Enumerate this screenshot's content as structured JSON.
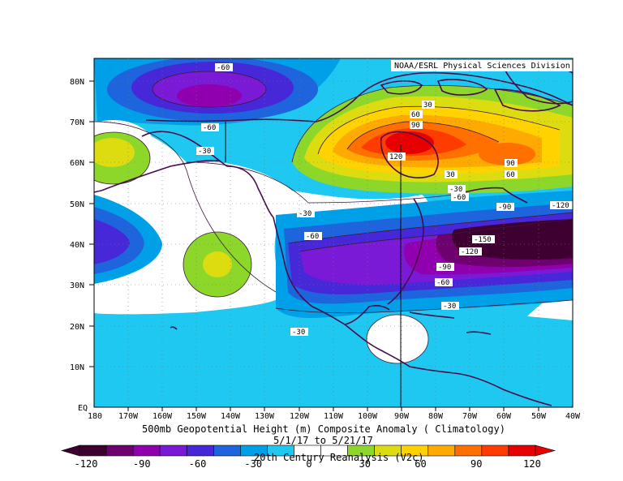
{
  "credit": "NOAA/ESRL Physical Sciences Division",
  "title": "500mb Geopotential Height (m) Composite Anomaly ( Climatology)",
  "dates": "5/1/17   to 5/21/17",
  "source": "20th Century Reanalysis (V2c)",
  "lat_labels": [
    "80N",
    "70N",
    "60N",
    "50N",
    "40N",
    "30N",
    "20N",
    "10N",
    "EQ"
  ],
  "lon_labels": [
    "180",
    "170W",
    "160W",
    "150W",
    "140W",
    "130W",
    "120W",
    "110W",
    "100W",
    "90W",
    "80W",
    "70W",
    "60W",
    "50W",
    "40W"
  ],
  "contour_labels": [
    {
      "text": "-60"
    },
    {
      "text": "-60"
    },
    {
      "text": "-30"
    },
    {
      "text": "30"
    },
    {
      "text": "60"
    },
    {
      "text": "90"
    },
    {
      "text": "120"
    },
    {
      "text": "90"
    },
    {
      "text": "60"
    },
    {
      "text": "30"
    },
    {
      "text": "-30"
    },
    {
      "text": "-60"
    },
    {
      "text": "-90"
    },
    {
      "text": "-120"
    },
    {
      "text": "-30"
    },
    {
      "text": "-60"
    },
    {
      "text": "-150"
    },
    {
      "text": "-120"
    },
    {
      "text": "-90"
    },
    {
      "text": "-60"
    },
    {
      "text": "-30"
    },
    {
      "text": "-30"
    }
  ],
  "colorbar": {
    "tick_labels": [
      "-120",
      "-90",
      "-60",
      "-30",
      "0",
      "30",
      "60",
      "90",
      "120"
    ],
    "colors": [
      "#3d0030",
      "#6f006f",
      "#9100ae",
      "#7a1ad6",
      "#4628d9",
      "#1e64dc",
      "#00a0e8",
      "#1ec8f0",
      "#ffffff",
      "#ffffff",
      "#8cd72a",
      "#dcdc10",
      "#ffd200",
      "#ffaa00",
      "#ff7000",
      "#ff3c00",
      "#e60000"
    ]
  },
  "legend": {
    "range": [
      -120,
      120
    ],
    "interval": 15
  },
  "map_extent": {
    "lon": [
      -180,
      -40
    ],
    "lat": [
      0,
      85
    ]
  }
}
